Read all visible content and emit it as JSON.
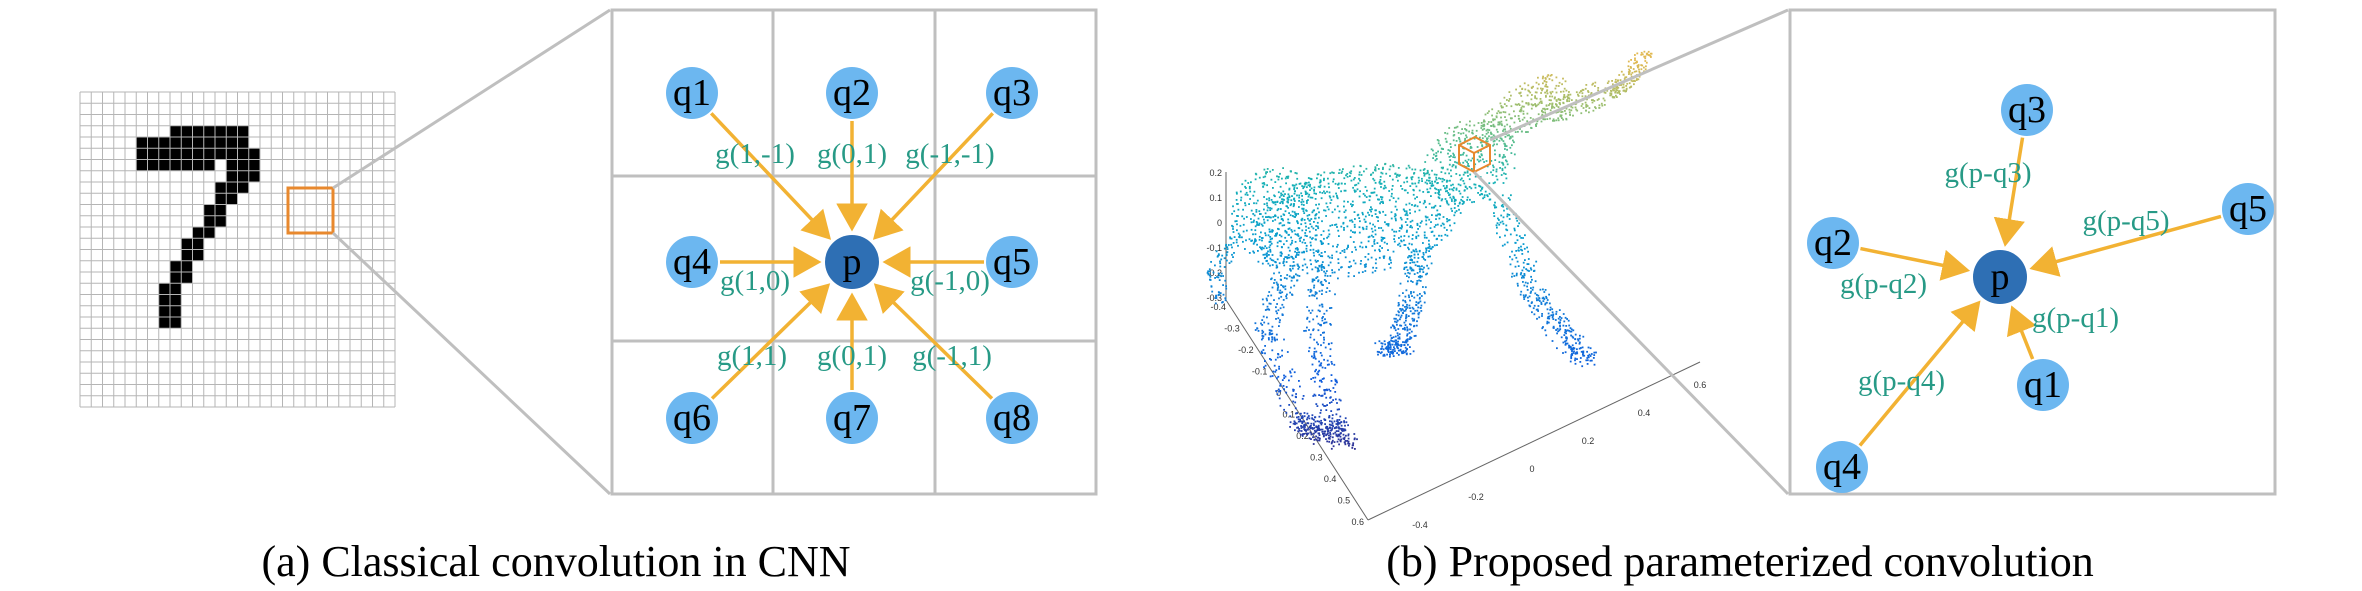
{
  "captions": {
    "left": "(a) Classical convolution in CNN",
    "right": "(b) Proposed parameterized convolution"
  },
  "colors": {
    "node_neighbor": "#6cb7f0",
    "node_center": "#2e6fb4",
    "arrow": "#f2b233",
    "edge_label": "#279a86",
    "highlight_box": "#e8892e",
    "zoom_frame": "#bfbfbf",
    "grid_line": "#b5b5b5",
    "digit_pixel": "#000000"
  },
  "grid_panel": {
    "center": "p",
    "neighbors": [
      {
        "id": "q1",
        "label": "q1",
        "edge_label": "g(1,-1)"
      },
      {
        "id": "q2",
        "label": "q2",
        "edge_label": "g(0,1)"
      },
      {
        "id": "q3",
        "label": "q3",
        "edge_label": "g(-1,-1)"
      },
      {
        "id": "q4",
        "label": "q4",
        "edge_label": "g(1,0)"
      },
      {
        "id": "q5",
        "label": "q5",
        "edge_label": "g(-1,0)"
      },
      {
        "id": "q6",
        "label": "q6",
        "edge_label": "g(1,1)"
      },
      {
        "id": "q7",
        "label": "q7",
        "edge_label": "g(0,1)"
      },
      {
        "id": "q8",
        "label": "q8",
        "edge_label": "g(-1,1)"
      }
    ]
  },
  "point_panel": {
    "center": "p",
    "neighbors": [
      {
        "id": "q1",
        "label": "q1",
        "edge_label": "g(p-q1)"
      },
      {
        "id": "q2",
        "label": "q2",
        "edge_label": "g(p-q2)"
      },
      {
        "id": "q3",
        "label": "q3",
        "edge_label": "g(p-q3)"
      },
      {
        "id": "q4",
        "label": "q4",
        "edge_label": "g(p-q4)"
      },
      {
        "id": "q5",
        "label": "q5",
        "edge_label": "g(p-q5)"
      }
    ]
  },
  "plot_axes": {
    "z_ticks": [
      "0.2",
      "0.1",
      "0",
      "-0.1",
      "-0.2",
      "-0.3"
    ],
    "y_ticks": [
      "-0.4",
      "-0.3",
      "-0.2",
      "-0.1",
      "0",
      "0.1",
      "0.2",
      "0.3",
      "0.4",
      "0.5",
      "0.6"
    ],
    "x_ticks": [
      "-0.4",
      "-0.2",
      "0",
      "0.2",
      "0.4",
      "0.6"
    ]
  }
}
